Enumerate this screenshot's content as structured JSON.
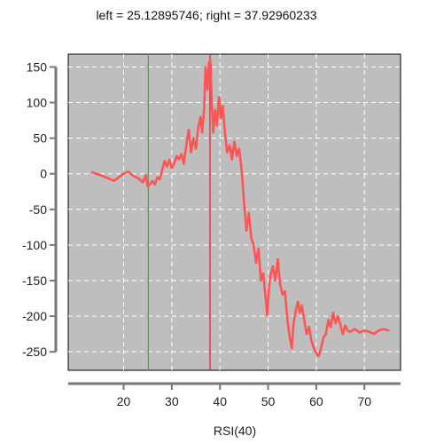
{
  "chart_data": {
    "type": "line",
    "title": "left = 25.12895746; right = 37.92960233",
    "xlabel": "RSI(40)",
    "ylabel": "",
    "xlim": [
      8.5,
      77.5
    ],
    "ylim": [
      -276,
      168
    ],
    "xticks": [
      20,
      30,
      40,
      50,
      60,
      70
    ],
    "yticks": [
      150,
      100,
      50,
      0,
      -50,
      -100,
      -150,
      -200,
      -250
    ],
    "grid": true,
    "vlines": [
      {
        "x": 25.12895746,
        "color": "#22bb22"
      },
      {
        "x": 37.92960233,
        "color": "#dd2222"
      }
    ],
    "series": [
      {
        "color": "#ff5555",
        "points": [
          [
            13.5,
            2
          ],
          [
            16,
            -4
          ],
          [
            18,
            -10
          ],
          [
            20,
            0
          ],
          [
            21,
            3
          ],
          [
            22,
            -3
          ],
          [
            23,
            -6
          ],
          [
            24,
            -12
          ],
          [
            24.6,
            -2
          ],
          [
            25,
            -18
          ],
          [
            25.5,
            -14
          ],
          [
            26,
            -10
          ],
          [
            26.5,
            -15
          ],
          [
            27,
            -5
          ],
          [
            27.5,
            -8
          ],
          [
            28,
            5
          ],
          [
            28.5,
            18
          ],
          [
            29,
            10
          ],
          [
            29.5,
            20
          ],
          [
            30,
            8
          ],
          [
            30.5,
            15
          ],
          [
            31,
            25
          ],
          [
            31.5,
            20
          ],
          [
            32,
            28
          ],
          [
            32.5,
            14
          ],
          [
            33,
            40
          ],
          [
            33.5,
            62
          ],
          [
            34,
            30
          ],
          [
            34.5,
            50
          ],
          [
            35,
            35
          ],
          [
            35.5,
            65
          ],
          [
            36,
            80
          ],
          [
            36.3,
            58
          ],
          [
            36.7,
            90
          ],
          [
            37,
            150
          ],
          [
            37.4,
            118
          ],
          [
            37.7,
            155
          ],
          [
            38,
            160
          ],
          [
            38.3,
            100
          ],
          [
            38.6,
            58
          ],
          [
            39,
            90
          ],
          [
            39.4,
            68
          ],
          [
            39.8,
            108
          ],
          [
            40.2,
            78
          ],
          [
            40.6,
            95
          ],
          [
            41,
            60
          ],
          [
            41.5,
            30
          ],
          [
            42,
            40
          ],
          [
            42.5,
            20
          ],
          [
            43,
            45
          ],
          [
            43.5,
            25
          ],
          [
            44,
            35
          ],
          [
            44.5,
            5
          ],
          [
            45,
            -40
          ],
          [
            45.5,
            -80
          ],
          [
            46,
            -55
          ],
          [
            46.5,
            -90
          ],
          [
            47,
            -100
          ],
          [
            47.5,
            -125
          ],
          [
            48,
            -105
          ],
          [
            48.5,
            -150
          ],
          [
            49,
            -140
          ],
          [
            49.5,
            -175
          ],
          [
            49.8,
            -198
          ],
          [
            50.2,
            -160
          ],
          [
            50.6,
            -140
          ],
          [
            51,
            -130
          ],
          [
            51.5,
            -150
          ],
          [
            52,
            -120
          ],
          [
            52.5,
            -155
          ],
          [
            53,
            -170
          ],
          [
            53.5,
            -165
          ],
          [
            54,
            -205
          ],
          [
            54.5,
            -230
          ],
          [
            54.9,
            -245
          ],
          [
            55.3,
            -210
          ],
          [
            55.8,
            -190
          ],
          [
            56.2,
            -180
          ],
          [
            56.6,
            -195
          ],
          [
            57,
            -185
          ],
          [
            57.5,
            -205
          ],
          [
            58,
            -225
          ],
          [
            58.5,
            -215
          ],
          [
            59,
            -235
          ],
          [
            59.5,
            -245
          ],
          [
            60,
            -252
          ],
          [
            60.5,
            -256
          ],
          [
            61,
            -245
          ],
          [
            61.5,
            -230
          ],
          [
            62,
            -225
          ],
          [
            62.5,
            -205
          ],
          [
            63,
            -215
          ],
          [
            63.5,
            -195
          ],
          [
            64,
            -210
          ],
          [
            64.5,
            -200
          ],
          [
            65,
            -212
          ],
          [
            65.5,
            -225
          ],
          [
            66,
            -213
          ],
          [
            66.5,
            -220
          ],
          [
            67,
            -222
          ],
          [
            68,
            -218
          ],
          [
            69,
            -223
          ],
          [
            70,
            -220
          ],
          [
            71,
            -222
          ],
          [
            72,
            -225
          ],
          [
            73,
            -220
          ],
          [
            74,
            -218
          ],
          [
            75,
            -220
          ]
        ]
      }
    ]
  }
}
